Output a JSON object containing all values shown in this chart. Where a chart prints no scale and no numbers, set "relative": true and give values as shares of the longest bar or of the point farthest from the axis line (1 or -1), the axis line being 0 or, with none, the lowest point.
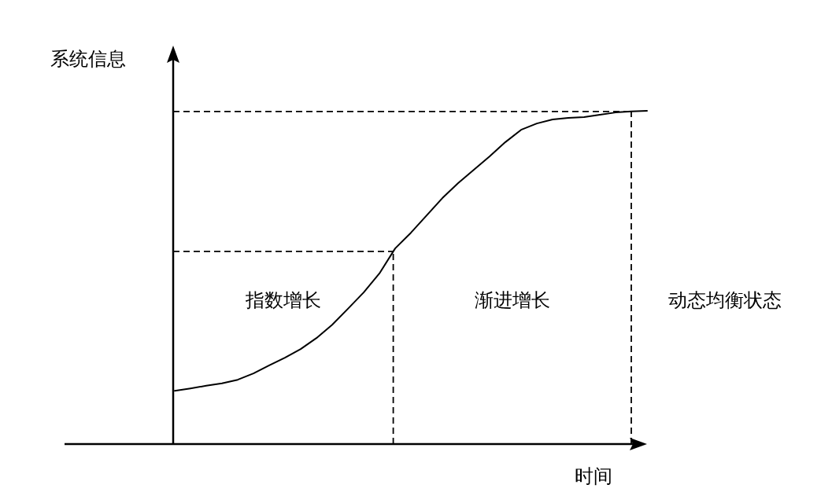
{
  "chart_data": {
    "type": "line",
    "relative": true,
    "ylabel": "系统信息",
    "xlabel": "时间",
    "categories": [
      null,
      null,
      null,
      null,
      null,
      null,
      null,
      null,
      null,
      null,
      null,
      null,
      null,
      null,
      null,
      null,
      null,
      null,
      null,
      null,
      null,
      null,
      null,
      null,
      null,
      null,
      null,
      null,
      null,
      null,
      null
    ],
    "series": [
      {
        "color": "#000000",
        "line_style": "solid",
        "values": [
          0.16,
          0.167,
          0.175,
          0.182,
          0.193,
          0.212,
          0.236,
          0.259,
          0.285,
          0.318,
          0.358,
          0.406,
          0.455,
          0.512,
          0.587,
          0.634,
          0.686,
          0.738,
          0.783,
          0.823,
          0.863,
          0.906,
          0.943,
          0.962,
          0.974,
          0.979,
          0.981,
          0.988,
          0.995,
          0.998,
          1.0
        ]
      }
    ],
    "ref_lines": [
      {
        "axis": "y",
        "value": 0.998,
        "line_style": "dashed",
        "color": "#000000"
      },
      {
        "axis": "y",
        "value": 0.578,
        "line_style": "dashed",
        "color": "#000000"
      }
    ],
    "annotations": [
      "指数增长",
      "渐进增长",
      "动态均衡状态"
    ]
  }
}
